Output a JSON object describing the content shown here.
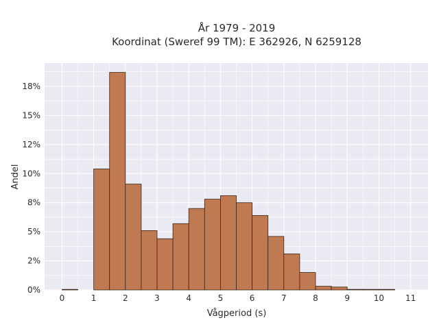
{
  "chart_data": {
    "type": "bar",
    "title_line1": "År 1979 - 2019",
    "title_line2": "Koordinat (Sweref 99 TM): E 362926, N 6259128",
    "xlabel": "Vågperiod (s)",
    "ylabel": "Andel",
    "bin_width": 0.5,
    "bins": [
      {
        "x0": 0.0,
        "x1": 0.5,
        "value": 0.0
      },
      {
        "x0": 1.0,
        "x1": 1.5,
        "value": 10.4
      },
      {
        "x0": 1.5,
        "x1": 2.0,
        "value": 18.7
      },
      {
        "x0": 2.0,
        "x1": 2.5,
        "value": 9.1
      },
      {
        "x0": 2.5,
        "x1": 3.0,
        "value": 5.1
      },
      {
        "x0": 3.0,
        "x1": 3.5,
        "value": 4.4
      },
      {
        "x0": 3.5,
        "x1": 4.0,
        "value": 5.7
      },
      {
        "x0": 4.0,
        "x1": 4.5,
        "value": 7.0
      },
      {
        "x0": 4.5,
        "x1": 5.0,
        "value": 7.8
      },
      {
        "x0": 5.0,
        "x1": 5.5,
        "value": 8.1
      },
      {
        "x0": 5.5,
        "x1": 6.0,
        "value": 7.5
      },
      {
        "x0": 6.0,
        "x1": 6.5,
        "value": 6.4
      },
      {
        "x0": 6.5,
        "x1": 7.0,
        "value": 4.6
      },
      {
        "x0": 7.0,
        "x1": 7.5,
        "value": 3.1
      },
      {
        "x0": 7.5,
        "x1": 8.0,
        "value": 1.5
      },
      {
        "x0": 8.0,
        "x1": 8.5,
        "value": 0.32
      },
      {
        "x0": 8.5,
        "x1": 9.0,
        "value": 0.25
      },
      {
        "x0": 9.0,
        "x1": 9.5,
        "value": 0.05
      },
      {
        "x0": 9.5,
        "x1": 10.0,
        "value": 0.03
      },
      {
        "x0": 10.0,
        "x1": 10.5,
        "value": 0.02
      }
    ],
    "xlim": [
      -0.55,
      11.55
    ],
    "ylim": [
      0,
      19.5
    ],
    "x_ticks": [
      {
        "value": 0,
        "label": "0"
      },
      {
        "value": 1,
        "label": "1"
      },
      {
        "value": 2,
        "label": "2"
      },
      {
        "value": 3,
        "label": "3"
      },
      {
        "value": 4,
        "label": "4"
      },
      {
        "value": 5,
        "label": "5"
      },
      {
        "value": 6,
        "label": "6"
      },
      {
        "value": 7,
        "label": "7"
      },
      {
        "value": 8,
        "label": "8"
      },
      {
        "value": 9,
        "label": "9"
      },
      {
        "value": 10,
        "label": "10"
      },
      {
        "value": 11,
        "label": "11"
      }
    ],
    "y_ticks": [
      {
        "value": 0,
        "label": "0%"
      },
      {
        "value": 2.5,
        "label": "2%"
      },
      {
        "value": 5,
        "label": "5%"
      },
      {
        "value": 7.5,
        "label": "8%"
      },
      {
        "value": 10,
        "label": "10%"
      },
      {
        "value": 12.5,
        "label": "12%"
      },
      {
        "value": 15,
        "label": "15%"
      },
      {
        "value": 17.5,
        "label": "18%"
      }
    ],
    "grid": true,
    "colors": {
      "bar_fill": "#c07a52",
      "bar_edge": "#3a2418",
      "plot_bg": "#eaeaf2",
      "grid": "#ffffff"
    }
  }
}
